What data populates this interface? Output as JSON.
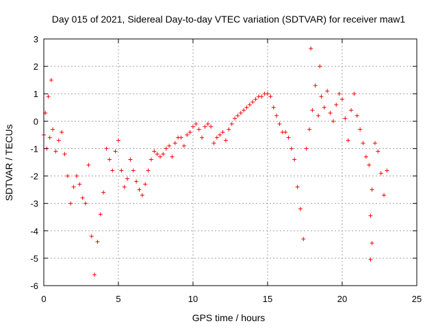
{
  "chart_data": {
    "type": "scatter",
    "title": "Day 015 of 2021, Sidereal Day-to-day VTEC variation (SDTVAR) for receiver maw1",
    "xlabel": "GPS time / hours",
    "ylabel": "SDTVAR / TECUs",
    "xlim": [
      0,
      25
    ],
    "ylim": [
      -6,
      3
    ],
    "x_ticks": [
      0,
      5,
      10,
      15,
      20,
      25
    ],
    "y_ticks": [
      -6,
      -5,
      -4,
      -3,
      -2,
      -1,
      0,
      1,
      2,
      3
    ],
    "x_tick_labels": [
      "0",
      "5",
      "10",
      "15",
      "20",
      "25"
    ],
    "y_tick_labels": [
      "-6",
      "-5",
      "-4",
      "-3",
      "-2",
      "-1",
      "0",
      "1",
      "2",
      "3"
    ],
    "grid": true,
    "marker": "+",
    "color": "#ff0000",
    "series": [
      {
        "name": "SDTVAR",
        "x": [
          0.0,
          0.1,
          0.2,
          0.3,
          0.4,
          0.5,
          0.6,
          0.8,
          1.0,
          1.2,
          1.4,
          1.6,
          1.8,
          2.0,
          2.2,
          2.4,
          2.6,
          2.8,
          3.0,
          3.2,
          3.4,
          3.6,
          3.8,
          4.0,
          4.2,
          4.4,
          4.6,
          4.8,
          5.0,
          5.2,
          5.4,
          5.6,
          5.8,
          6.0,
          6.2,
          6.4,
          6.6,
          6.8,
          7.0,
          7.2,
          7.4,
          7.6,
          7.8,
          8.0,
          8.2,
          8.4,
          8.6,
          8.8,
          9.0,
          9.2,
          9.4,
          9.6,
          9.8,
          10.0,
          10.2,
          10.4,
          10.6,
          10.8,
          11.0,
          11.2,
          11.4,
          11.6,
          11.8,
          12.0,
          12.2,
          12.4,
          12.6,
          12.8,
          13.0,
          13.2,
          13.4,
          13.6,
          13.8,
          14.0,
          14.2,
          14.4,
          14.6,
          14.8,
          15.0,
          15.2,
          15.4,
          15.6,
          15.8,
          16.0,
          16.2,
          16.4,
          16.6,
          16.8,
          17.0,
          17.2,
          17.4,
          17.6,
          17.8,
          18.0,
          18.2,
          18.4,
          18.6,
          18.8,
          19.0,
          19.2,
          19.4,
          19.6,
          19.8,
          20.0,
          20.2,
          20.4,
          20.6,
          20.8,
          21.0,
          21.2,
          21.4,
          21.6,
          21.8,
          22.0,
          22.2,
          22.4,
          22.6,
          22.8,
          23.0
        ],
        "y": [
          -0.5,
          0.3,
          -1.0,
          0.9,
          -0.6,
          1.5,
          -0.3,
          -1.1,
          -0.7,
          -0.4,
          -1.2,
          -2.0,
          -3.0,
          -2.4,
          -2.0,
          -2.3,
          -2.8,
          -3.0,
          -1.6,
          -4.2,
          -5.6,
          -4.4,
          -3.4,
          -2.6,
          -1.0,
          -1.4,
          -1.8,
          -1.1,
          -0.7,
          -1.8,
          -2.4,
          -2.1,
          -1.4,
          -1.8,
          -2.2,
          -2.5,
          -2.7,
          -2.3,
          -1.8,
          -1.4,
          -1.1,
          -1.2,
          -1.3,
          -1.2,
          -1.0,
          -0.9,
          -1.3,
          -0.8,
          -0.6,
          -0.6,
          -0.9,
          -0.5,
          -0.4,
          -0.2,
          -0.1,
          -0.3,
          -0.6,
          -0.2,
          -0.1,
          -0.2,
          -0.8,
          -0.6,
          -0.5,
          -0.4,
          -0.7,
          -0.3,
          -0.1,
          0.1,
          0.2,
          0.3,
          0.4,
          0.5,
          0.6,
          0.7,
          0.8,
          0.9,
          0.9,
          1.0,
          1.0,
          0.9,
          0.5,
          0.2,
          -0.1,
          -0.4,
          -0.4,
          -0.6,
          -1.0,
          -1.4,
          -2.4,
          -3.2,
          -4.3,
          -1.0,
          -0.3,
          0.4,
          1.3,
          0.2,
          0.9,
          0.5,
          1.1,
          0.3,
          0.0,
          0.6,
          1.0,
          0.8,
          0.1,
          -0.7,
          0.4,
          1.0,
          0.2,
          -0.3,
          -0.8,
          -1.3,
          -1.6,
          -2.5,
          -0.8,
          -1.1,
          -1.9,
          -2.7,
          -1.8
        ]
      }
    ],
    "outliers": [
      {
        "x": 17.9,
        "y": 2.65
      },
      {
        "x": 18.5,
        "y": 2.0
      },
      {
        "x": 21.9,
        "y": -3.45
      },
      {
        "x": 22.0,
        "y": -4.45
      },
      {
        "x": 21.9,
        "y": -5.05
      }
    ]
  }
}
